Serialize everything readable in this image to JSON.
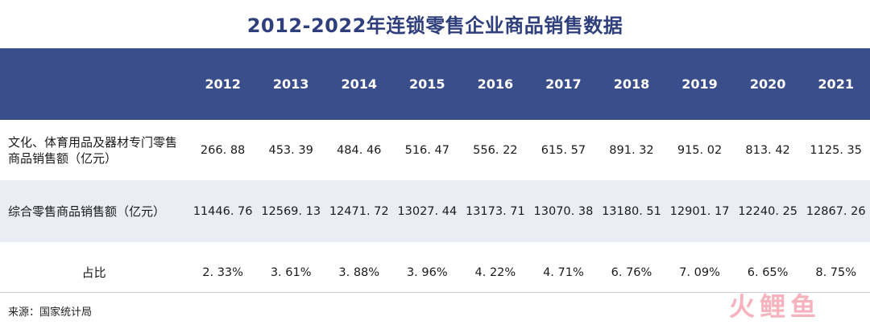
{
  "title": "2012-2022年连锁零售企业商品销售数据",
  "table": {
    "years": [
      "2012",
      "2013",
      "2014",
      "2015",
      "2016",
      "2017",
      "2018",
      "2019",
      "2020",
      "2021"
    ],
    "rows": [
      {
        "label": "文化、体育用品及器材专门零售商品销售额（亿元）",
        "values": [
          "266. 88",
          "453. 39",
          "484. 46",
          "516. 47",
          "556. 22",
          "615. 57",
          "891. 32",
          "915. 02",
          "813. 42",
          "1125. 35"
        ]
      },
      {
        "label": "综合零售商品销售额（亿元）",
        "values": [
          "11446. 76",
          "12569. 13",
          "12471. 72",
          "13027. 44",
          "13173. 71",
          "13070. 38",
          "13180. 51",
          "12901. 17",
          "12240. 25",
          "12867. 26"
        ]
      },
      {
        "label": "占比",
        "values": [
          "2. 33%",
          "3. 61%",
          "3. 88%",
          "3. 96%",
          "4. 22%",
          "4. 71%",
          "6. 76%",
          "7. 09%",
          "6. 65%",
          "8. 75%"
        ]
      }
    ]
  },
  "source": "来源：国家统计局",
  "watermark": "火鲤鱼",
  "colors": {
    "header_bg": "#3a4e8c",
    "title": "#2f3f7c",
    "stripe": "#eaedf4"
  }
}
